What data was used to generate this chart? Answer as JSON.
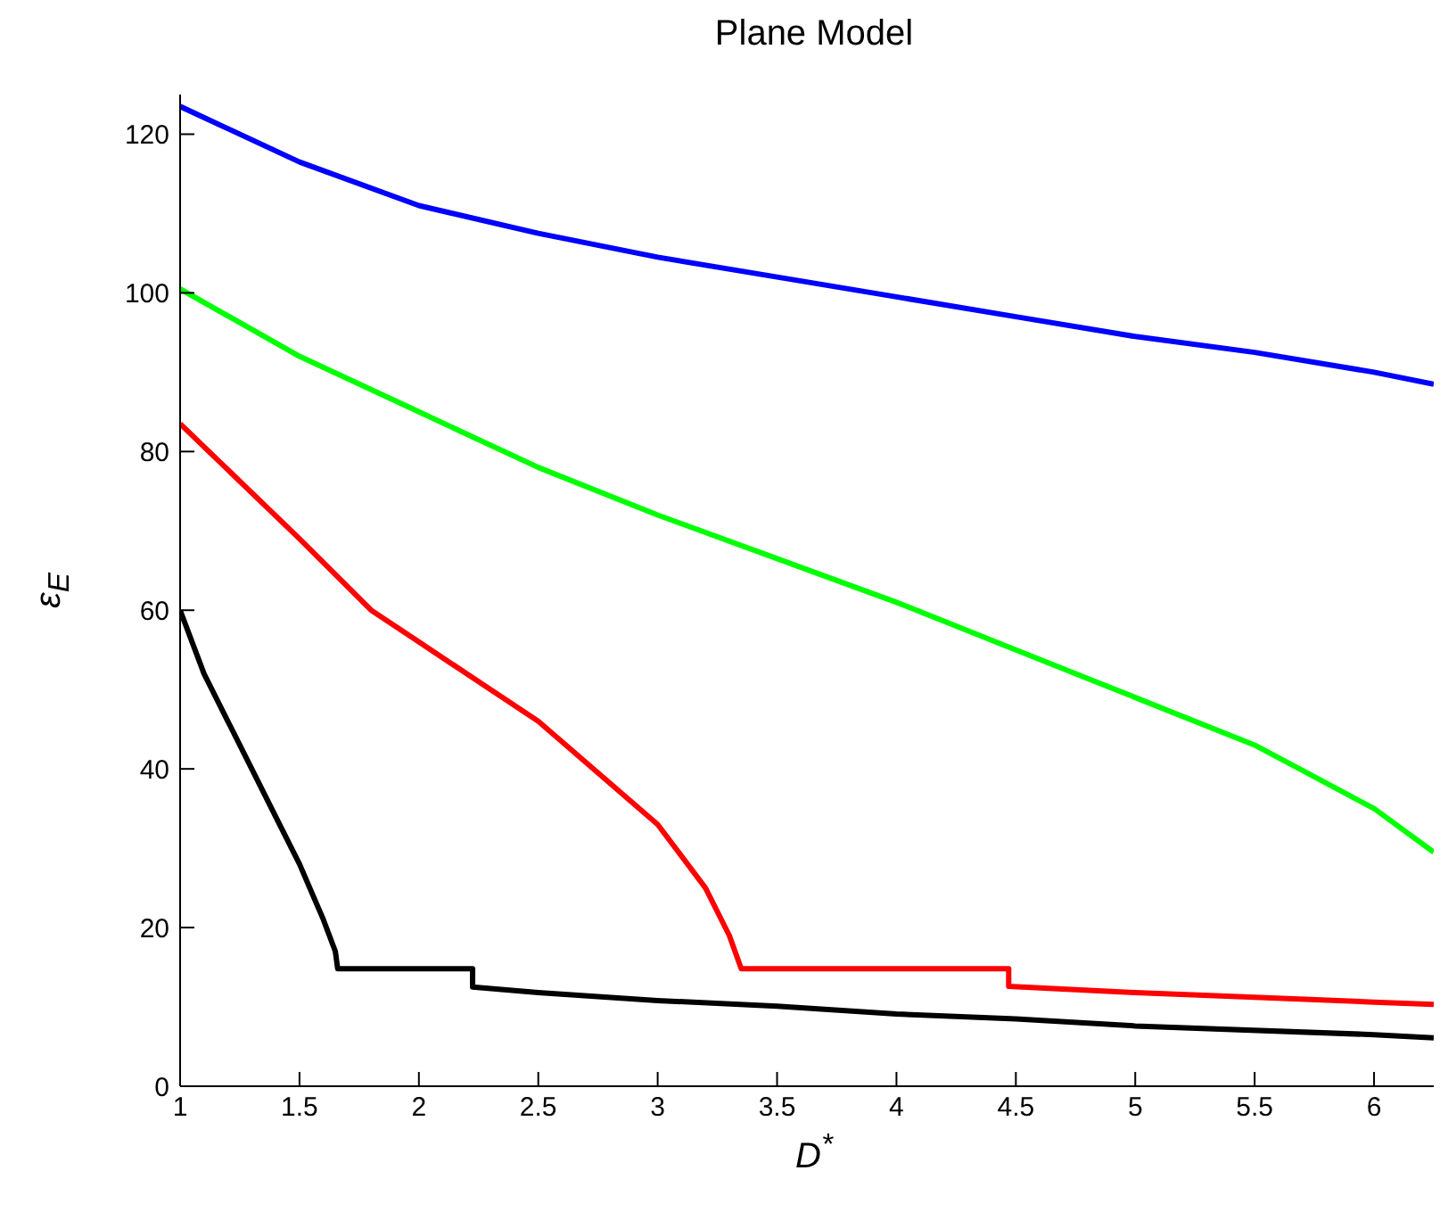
{
  "chart_data": {
    "type": "line",
    "title": "Plane Model",
    "xlabel": "D$^{*}$",
    "ylabel": "ε$_{E}$",
    "xlim": [
      1,
      6.25
    ],
    "xticks": [
      1,
      1.5,
      2,
      2.5,
      3,
      3.5,
      4,
      4.5,
      5,
      5.5,
      6
    ],
    "ylim": [
      0,
      125
    ],
    "yticks": [
      0,
      20,
      40,
      60,
      80,
      100,
      120
    ],
    "grid": false,
    "legend": false,
    "series": [
      {
        "color": "#0000ff",
        "x": [
          1,
          1.5,
          2,
          2.5,
          3,
          3.5,
          4,
          4.5,
          5,
          5.5,
          6,
          6.25
        ],
        "values": [
          123.5,
          116.5,
          111,
          107.5,
          104.5,
          102,
          99.5,
          97,
          94.5,
          92.5,
          90,
          88.5
        ]
      },
      {
        "color": "#00ff00",
        "x": [
          1,
          1.5,
          2,
          2.5,
          3,
          3.5,
          4,
          4.5,
          5,
          5.5,
          6,
          6.25
        ],
        "values": [
          100.5,
          92,
          85,
          78,
          72,
          66.5,
          61,
          55,
          49,
          43,
          35,
          29.5
        ]
      },
      {
        "color": "#ff0000",
        "x": [
          1,
          1.5,
          1.8,
          2,
          2.5,
          3,
          3.2,
          3.3,
          3.35,
          3.35,
          4.47,
          4.47,
          5,
          5.5,
          6,
          6.25
        ],
        "values": [
          83.5,
          69,
          60,
          56,
          46,
          33,
          25,
          19,
          14.8,
          14.8,
          14.8,
          12.6,
          11.8,
          11.2,
          10.6,
          10.3
        ]
      },
      {
        "color": "#000000",
        "x": [
          1,
          1.1,
          1.2,
          1.3,
          1.4,
          1.5,
          1.6,
          1.65,
          1.66,
          2.225,
          2.225,
          2.5,
          3,
          3.5,
          4,
          4.5,
          5,
          6,
          6.25
        ],
        "values": [
          60,
          52,
          46,
          40,
          34,
          28,
          21,
          17,
          14.8,
          14.8,
          12.5,
          11.8,
          10.8,
          10.1,
          9.1,
          8.5,
          7.6,
          6.5,
          6.1
        ]
      }
    ]
  }
}
